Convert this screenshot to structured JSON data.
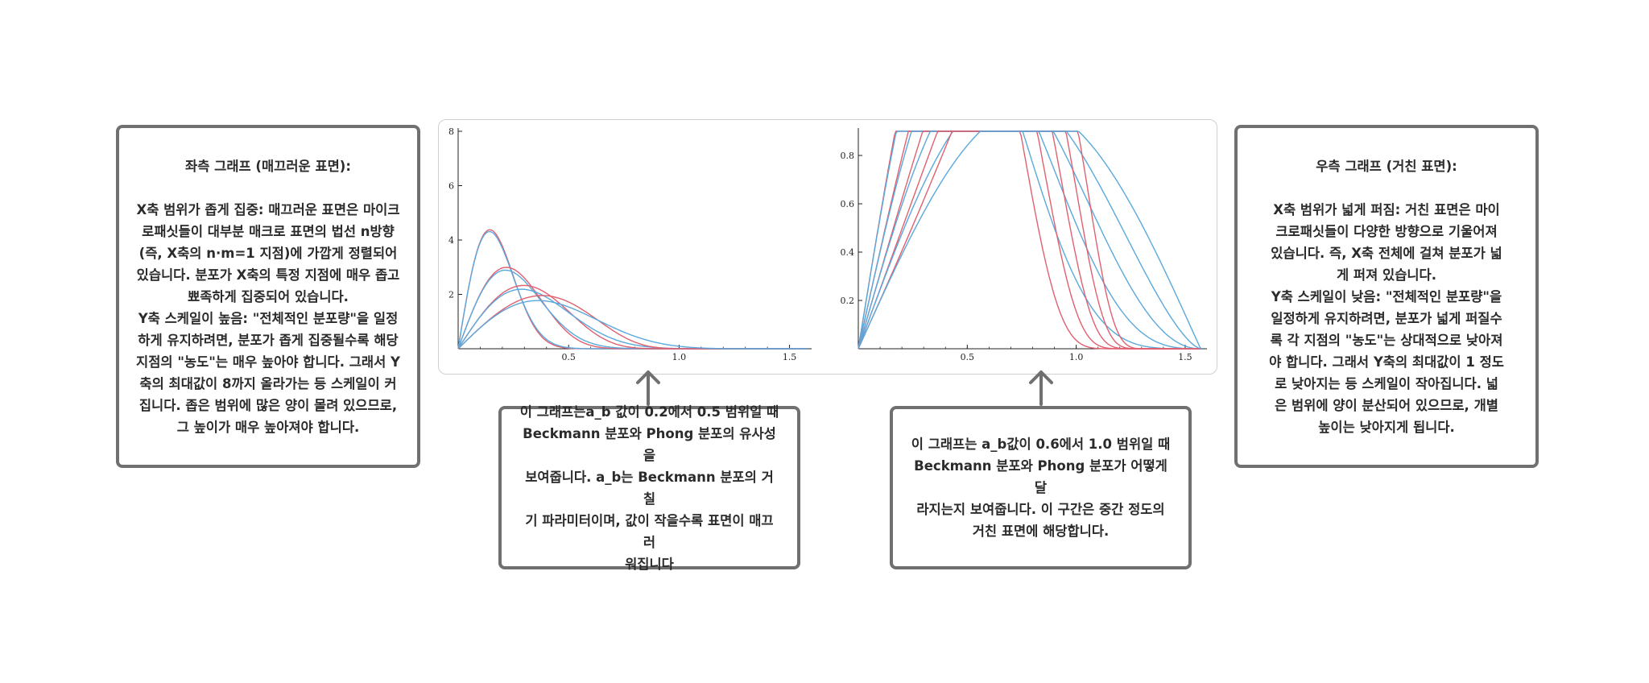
{
  "left_note": {
    "title": "좌측 그래프 (매끄러운 표면):",
    "lines": [
      "X축 범위가 좁게 집중: 매끄러운 표면은 마이크",
      "로패싯들이 대부분 매크로 표면의 법선 n방향",
      "(즉, X축의 n·m=1 지점)에 가깝게 정렬되어",
      "있습니다. 분포가 X축의 특정 지점에 매우 좁고",
      "뾰족하게 집중되어 있습니다.",
      "Y축 스케일이 높음: \"전체적인 분포량\"을 일정",
      "하게 유지하려면, 분포가 좁게 집중될수록 해당",
      "지점의 \"농도\"는 매우 높아야 합니다. 그래서 Y",
      "축의 최대값이 8까지 올라가는 등 스케일이 커",
      "집니다. 좁은 범위에 많은 양이 몰려 있으므로,",
      "그 높이가 매우 높아져야 합니다."
    ]
  },
  "right_note": {
    "title": "우측 그래프 (거친 표면):",
    "lines": [
      "X축 범위가 넓게 퍼짐: 거친 표면은 마이",
      "크로패싯들이 다양한 방향으로 기울어져",
      "있습니다. 즉, X축 전체에 걸쳐 분포가 넓",
      "게 퍼져 있습니다.",
      "Y축 스케일이 낮음: \"전체적인 분포량\"을",
      "일정하게 유지하려면, 분포가 넓게 퍼질수",
      "록 각 지점의 \"농도\"는 상대적으로 낮아져",
      "야 합니다. 그래서 Y축의 최대값이 1 정도",
      "로 낮아지는 등 스케일이 작아집니다. 넓",
      "은 범위에 양이 분산되어 있으므로, 개별",
      "높이는 낮아지게 됩니다."
    ]
  },
  "mid_note_1": {
    "lines": [
      "이 그래프는a_b 값이 0.2에서 0.5 범위일 때",
      "Beckmann 분포와 Phong 분포의 유사성을",
      "보여줍니다. a_b는 Beckmann 분포의 거칠",
      "기 파라미터이며, 값이 작을수록 표면이 매끄러",
      "워집니다"
    ]
  },
  "mid_note_2": {
    "lines": [
      "이 그래프는 a_b값이 0.6에서 1.0 범위일 때",
      "Beckmann 분포와 Phong 분포가 어떻게 달",
      "라지는지 보여줍니다. 이 구간은 중간 정도의",
      "거친 표면에 해당합니다."
    ]
  },
  "colors": {
    "beckmann": "#e06070",
    "phong": "#5aa8dc",
    "border": "#707070"
  },
  "chart_data": [
    {
      "type": "line",
      "xlim": [
        0,
        1.6
      ],
      "ylim": [
        0,
        8
      ],
      "x_ticks": [
        "0.5",
        "1.0",
        "1.5"
      ],
      "x_tick_values": [
        0.5,
        1.0,
        1.5
      ],
      "y_ticks": [
        "2",
        "4",
        "6",
        "8"
      ],
      "y_tick_values": [
        2,
        4,
        6,
        8
      ],
      "roughness_values": [
        0.2,
        0.3,
        0.4,
        0.5
      ],
      "series": [
        {
          "kind": "beckmann",
          "alpha": 0.2
        },
        {
          "kind": "phong",
          "alpha": 0.2
        },
        {
          "kind": "beckmann",
          "alpha": 0.3
        },
        {
          "kind": "phong",
          "alpha": 0.3
        },
        {
          "kind": "beckmann",
          "alpha": 0.4
        },
        {
          "kind": "phong",
          "alpha": 0.4
        },
        {
          "kind": "beckmann",
          "alpha": 0.5
        },
        {
          "kind": "phong",
          "alpha": 0.5
        }
      ]
    },
    {
      "type": "line",
      "xlim": [
        0,
        1.6
      ],
      "ylim": [
        0,
        0.9
      ],
      "x_ticks": [
        "0.5",
        "1.0",
        "1.5"
      ],
      "x_tick_values": [
        0.5,
        1.0,
        1.5
      ],
      "y_ticks": [
        "0.2",
        "0.4",
        "0.6",
        "0.8"
      ],
      "y_tick_values": [
        0.2,
        0.4,
        0.6,
        0.8
      ],
      "roughness_values": [
        0.6,
        0.7,
        0.8,
        0.9,
        1.0
      ],
      "series": [
        {
          "kind": "beckmann",
          "alpha": 0.6
        },
        {
          "kind": "phong",
          "alpha": 0.6
        },
        {
          "kind": "beckmann",
          "alpha": 0.7
        },
        {
          "kind": "phong",
          "alpha": 0.7
        },
        {
          "kind": "beckmann",
          "alpha": 0.8
        },
        {
          "kind": "phong",
          "alpha": 0.8
        },
        {
          "kind": "beckmann",
          "alpha": 0.9
        },
        {
          "kind": "phong",
          "alpha": 0.9
        },
        {
          "kind": "beckmann",
          "alpha": 1.0
        },
        {
          "kind": "phong",
          "alpha": 1.0
        }
      ]
    }
  ]
}
